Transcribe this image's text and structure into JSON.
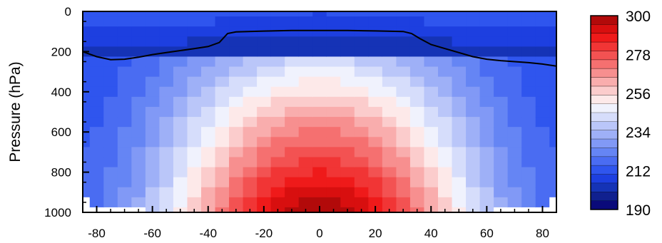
{
  "chart_data": {
    "type": "heatmap",
    "title": "",
    "xlabel": "",
    "ylabel": "Pressure (hPa)",
    "x_ticks": [
      -80,
      -60,
      -40,
      -20,
      0,
      20,
      40,
      60,
      80
    ],
    "xlim": [
      -85,
      85
    ],
    "y_ticks": [
      0,
      200,
      400,
      600,
      800,
      1000
    ],
    "ylim": [
      1000,
      0
    ],
    "y_inverted": true,
    "colorbar": {
      "label_values": [
        300,
        278,
        256,
        234,
        212,
        190
      ],
      "min": 190,
      "max": 300,
      "step": 5.5,
      "colors": [
        "#0a0a7a",
        "#10208f",
        "#1533b6",
        "#1d3fe0",
        "#2f55ee",
        "#4a6cf2",
        "#6585f4",
        "#8199f6",
        "#9eb0f7",
        "#bac6f9",
        "#d6ddfb",
        "#f0f2fd",
        "#fde9e9",
        "#fbcccc",
        "#f9adad",
        "#f78f8f",
        "#f57070",
        "#f35252",
        "#f13535",
        "#ef1a1a",
        "#d80f0f",
        "#b20a0a"
      ]
    },
    "field": {
      "latitudes": [
        -85,
        -80,
        -75,
        -70,
        -65,
        -60,
        -55,
        -50,
        -45,
        -40,
        -35,
        -30,
        -25,
        -20,
        -15,
        -10,
        -5,
        0,
        5,
        10,
        15,
        20,
        25,
        30,
        35,
        40,
        45,
        50,
        55,
        60,
        65,
        70,
        75,
        80,
        85
      ],
      "pressure_levels": [
        0,
        50,
        100,
        150,
        200,
        250,
        300,
        350,
        400,
        450,
        500,
        550,
        600,
        650,
        700,
        750,
        800,
        850,
        900,
        950,
        1000
      ]
    },
    "contour": {
      "lat": [
        -85,
        -80,
        -75,
        -70,
        -65,
        -60,
        -55,
        -50,
        -45,
        -40,
        -36,
        -33,
        -30,
        -20,
        -10,
        0,
        10,
        20,
        30,
        33,
        36,
        40,
        45,
        50,
        55,
        60,
        65,
        70,
        75,
        80,
        85
      ],
      "pressure": [
        200,
        225,
        240,
        238,
        228,
        215,
        205,
        195,
        185,
        175,
        155,
        110,
        102,
        98,
        95,
        95,
        95,
        97,
        100,
        110,
        135,
        165,
        185,
        205,
        225,
        238,
        245,
        250,
        255,
        262,
        272
      ],
      "color": "#000000"
    }
  }
}
